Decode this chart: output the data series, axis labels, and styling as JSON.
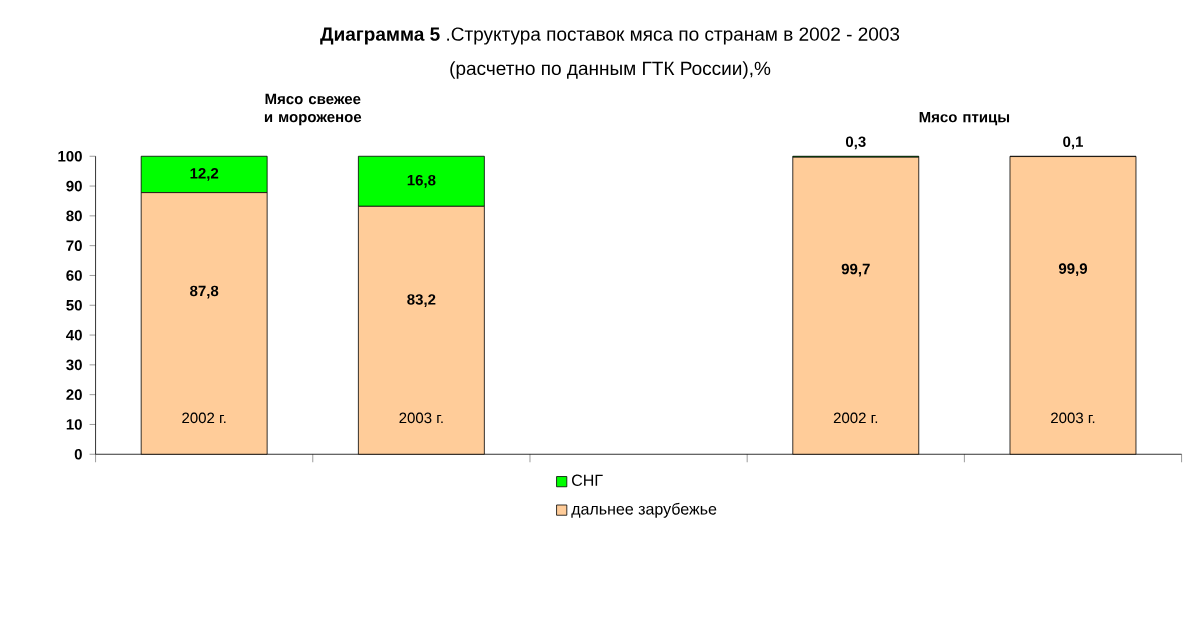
{
  "chart_data": {
    "type": "bar",
    "stacked": true,
    "title": "**Диаграмма 5** .Структура поставок мяса по странам в 2002 - 2003",
    "subtitle": "(расчетно  по данным ГТК России),%",
    "annotations": [
      "Мясо свежее и мороженое",
      "Мясо птицы"
    ],
    "categories": [
      "2002 г.",
      "2003 г.",
      null,
      "2002 г.",
      "2003 г."
    ],
    "series": [
      {
        "name": "дальнее зарубежье",
        "color": "#ffcc99",
        "values": [
          87.8,
          83.2,
          null,
          99.7,
          99.9
        ],
        "value_labels": [
          "87,8",
          "83,2",
          null,
          "99,7",
          "99,9"
        ]
      },
      {
        "name": "СНГ",
        "color": "#00ff00",
        "values": [
          12.2,
          16.8,
          null,
          0.3,
          0.1
        ],
        "value_labels": [
          "12,2",
          "16,8",
          null,
          "0,3",
          "0,1"
        ]
      }
    ],
    "ylim": [
      0,
      100
    ],
    "yticks": [
      0,
      10,
      20,
      30,
      40,
      50,
      60,
      70,
      80,
      90,
      100
    ],
    "legend": "bottom",
    "grid": false
  }
}
